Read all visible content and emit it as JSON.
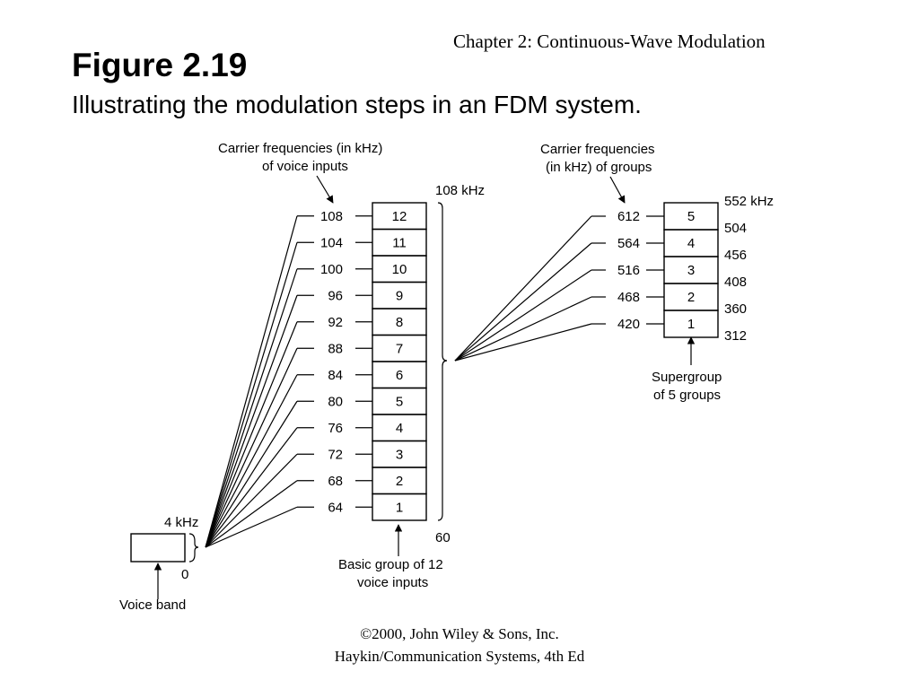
{
  "header": {
    "chapter": "Chapter 2: Continuous-Wave Modulation",
    "figure_title": "Figure 2.19",
    "figure_subtitle": "Illustrating the modulation steps in an FDM system."
  },
  "footer": {
    "copyright": "©2000, John Wiley & Sons, Inc.",
    "book": "Haykin/Communication Systems, 4th Ed"
  },
  "voice_band": {
    "top_label": "4 kHz",
    "bottom_label": "0",
    "caption": "Voice band"
  },
  "group_stage": {
    "carrier_caption_line1": "Carrier frequencies (in kHz)",
    "carrier_caption_line2": "of voice inputs",
    "carriers": [
      "108",
      "104",
      "100",
      "96",
      "92",
      "88",
      "84",
      "80",
      "76",
      "72",
      "68",
      "64"
    ],
    "channels": [
      "12",
      "11",
      "10",
      "9",
      "8",
      "7",
      "6",
      "5",
      "4",
      "3",
      "2",
      "1"
    ],
    "top_frequency": "108 kHz",
    "bottom_frequency": "60",
    "caption_line1": "Basic group of 12",
    "caption_line2": "voice inputs"
  },
  "supergroup_stage": {
    "carrier_caption_line1": "Carrier frequencies",
    "carrier_caption_line2": "(in kHz) of groups",
    "carriers": [
      "612",
      "564",
      "516",
      "468",
      "420"
    ],
    "groups": [
      "5",
      "4",
      "3",
      "2",
      "1"
    ],
    "edge_frequencies": [
      "552 kHz",
      "504",
      "456",
      "408",
      "360",
      "312"
    ],
    "caption_line1": "Supergroup",
    "caption_line2": "of 5 groups"
  }
}
